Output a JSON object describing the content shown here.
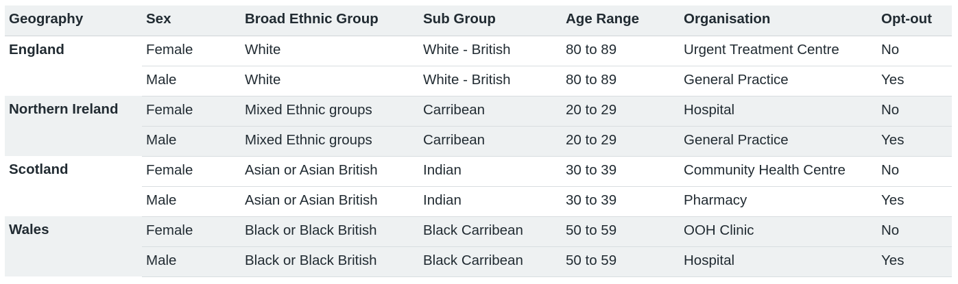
{
  "table": {
    "headers": [
      "Geography",
      "Sex",
      "Broad Ethnic Group",
      "Sub Group",
      "Age Range",
      "Organisation",
      "Opt-out"
    ],
    "groups": [
      {
        "geography": "England",
        "rows": [
          {
            "sex": "Female",
            "ethnic": "White",
            "sub": "White - British",
            "age": "80 to 89",
            "org": "Urgent Treatment Centre",
            "optout": "No"
          },
          {
            "sex": "Male",
            "ethnic": "White",
            "sub": "White - British",
            "age": "80 to 89",
            "org": "General Practice",
            "optout": "Yes"
          }
        ]
      },
      {
        "geography": "Northern Ireland",
        "rows": [
          {
            "sex": "Female",
            "ethnic": "Mixed Ethnic groups",
            "sub": "Carribean",
            "age": "20 to 29",
            "org": "Hospital",
            "optout": "No"
          },
          {
            "sex": "Male",
            "ethnic": "Mixed Ethnic groups",
            "sub": "Carribean",
            "age": "20 to 29",
            "org": "General Practice",
            "optout": "Yes"
          }
        ]
      },
      {
        "geography": "Scotland",
        "rows": [
          {
            "sex": "Female",
            "ethnic": "Asian or Asian British",
            "sub": "Indian",
            "age": "30 to 39",
            "org": "Community Health Centre",
            "optout": "No"
          },
          {
            "sex": "Male",
            "ethnic": "Asian or Asian British",
            "sub": "Indian",
            "age": "30 to 39",
            "org": "Pharmacy",
            "optout": "Yes"
          }
        ]
      },
      {
        "geography": "Wales",
        "rows": [
          {
            "sex": "Female",
            "ethnic": "Black or Black British",
            "sub": "Black Carribean",
            "age": "50 to 59",
            "org": "OOH Clinic",
            "optout": "No"
          },
          {
            "sex": "Male",
            "ethnic": "Black or Black British",
            "sub": "Black Carribean",
            "age": "50 to 59",
            "org": "Hospital",
            "optout": "Yes"
          }
        ]
      }
    ]
  }
}
